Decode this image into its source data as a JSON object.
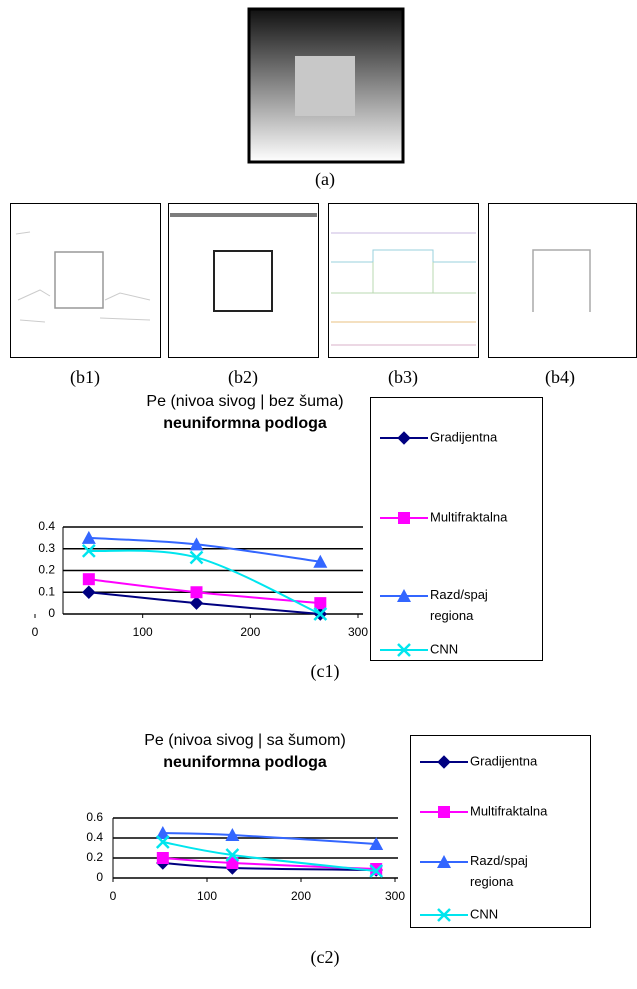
{
  "captions": {
    "a": "(a)",
    "b1": "(b1)",
    "b2": "(b2)",
    "b3": "(b3)",
    "b4": "(b4)",
    "c1": "(c1)",
    "c2": "(c2)"
  },
  "chart_data": [
    {
      "type": "line",
      "title": "Pe (nivoa sivog | bez šuma)",
      "subtitle": "neuniformna podloga",
      "x": [
        50,
        150,
        265
      ],
      "xlim": [
        0,
        300
      ],
      "xticks": [
        0,
        100,
        200,
        300
      ],
      "ylim": [
        0,
        0.4
      ],
      "yticks": [
        0,
        0.1,
        0.2,
        0.3,
        0.4
      ],
      "grid": true,
      "legend": "right",
      "series": [
        {
          "name": "Gradijentna",
          "color": "#000080",
          "marker": "diamond",
          "values": [
            0.1,
            0.05,
            0
          ]
        },
        {
          "name": "Multifraktalna",
          "color": "#ff00ff",
          "marker": "square",
          "values": [
            0.16,
            0.1,
            0.05
          ]
        },
        {
          "name": "Razd/spaj regiona",
          "color": "#3366ff",
          "marker": "triangle",
          "values": [
            0.35,
            0.32,
            0.24
          ]
        },
        {
          "name": "CNN",
          "color": "#00e5ee",
          "marker": "x",
          "values": [
            0.29,
            0.26,
            0
          ]
        }
      ]
    },
    {
      "type": "line",
      "title": "Pe (nivoa sivog | sa šumom)",
      "subtitle": "neuniformna podloga",
      "x": [
        53,
        127,
        280
      ],
      "xlim": [
        0,
        300
      ],
      "xticks": [
        0,
        100,
        200,
        300
      ],
      "ylim": [
        0,
        0.6
      ],
      "yticks": [
        0,
        0.2,
        0.4,
        0.6
      ],
      "grid": true,
      "legend": "right",
      "series": [
        {
          "name": "Gradijentna",
          "color": "#000080",
          "marker": "diamond",
          "values": [
            0.15,
            0.1,
            0.08
          ]
        },
        {
          "name": "Multifraktalna",
          "color": "#ff00ff",
          "marker": "square",
          "values": [
            0.2,
            0.15,
            0.09
          ]
        },
        {
          "name": "Razd/spaj regiona",
          "color": "#3366ff",
          "marker": "triangle",
          "values": [
            0.45,
            0.43,
            0.34
          ]
        },
        {
          "name": "CNN",
          "color": "#00e5ee",
          "marker": "x",
          "values": [
            0.36,
            0.23,
            0.07
          ]
        }
      ]
    }
  ]
}
